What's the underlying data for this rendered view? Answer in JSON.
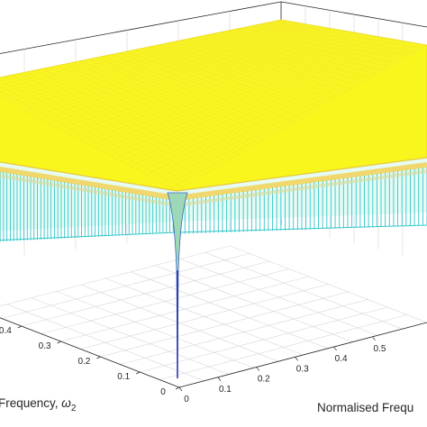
{
  "chart_data": {
    "type": "surface",
    "grid": true,
    "colormap": "parula",
    "xlabel": "Normalised Frequ",
    "ylabel_prefix": "Frequency, ",
    "ylabel_symbol": "ω",
    "ylabel_sub": "2",
    "x_ticks": [
      "0",
      "0.1",
      "0.2",
      "0.3",
      "0.4",
      "0.5"
    ],
    "y_ticks": [
      "0",
      "0.1",
      "0.2",
      "0.3",
      "0.4"
    ],
    "x_range": [
      0,
      0.5
    ],
    "y_range": [
      0,
      0.5
    ],
    "surface": {
      "description_values": {
        "plateau_level": 1.0,
        "notch_minimum": 0.0,
        "notch_location": [
          0,
          0
        ]
      }
    }
  }
}
